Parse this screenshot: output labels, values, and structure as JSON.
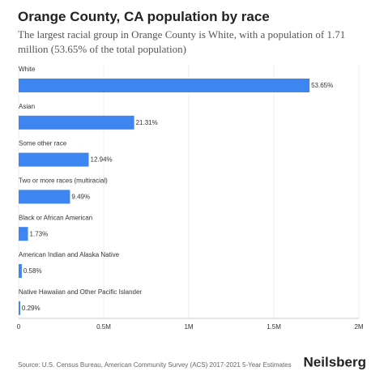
{
  "chart_data": {
    "type": "hbar",
    "title": "Orange County, CA population by race",
    "subtitle": "The largest racial group in Orange County is White, with a population of 1.71 million (53.65% of the total population)",
    "categories": [
      "White",
      "Asian",
      "Some other race",
      "Two or more races (multiracial)",
      "Black or African American",
      "American Indian and Alaska Native",
      "Native Hawaiian and Other Pacific Islander"
    ],
    "values": [
      1710000,
      679000,
      412000,
      302000,
      55000,
      18500,
      9200
    ],
    "percent_labels": [
      "53.65%",
      "21.31%",
      "12.94%",
      "9.49%",
      "1.73%",
      "0.58%",
      "0.29%"
    ],
    "color": "#3d85f0",
    "xlim": [
      0,
      2000000
    ],
    "xticks": [
      0,
      {
        "value": 500000,
        "label": "0.5M"
      },
      {
        "value": 1000000,
        "label": "1M"
      },
      {
        "value": 1500000,
        "label": "1.5M"
      },
      {
        "value": 2000000,
        "label": "2M"
      }
    ],
    "grid": true,
    "source": "Source: U.S. Census Bureau, American Community Survey (ACS) 2017-2021 5-Year Estimates",
    "brand": "Neilsberg"
  }
}
